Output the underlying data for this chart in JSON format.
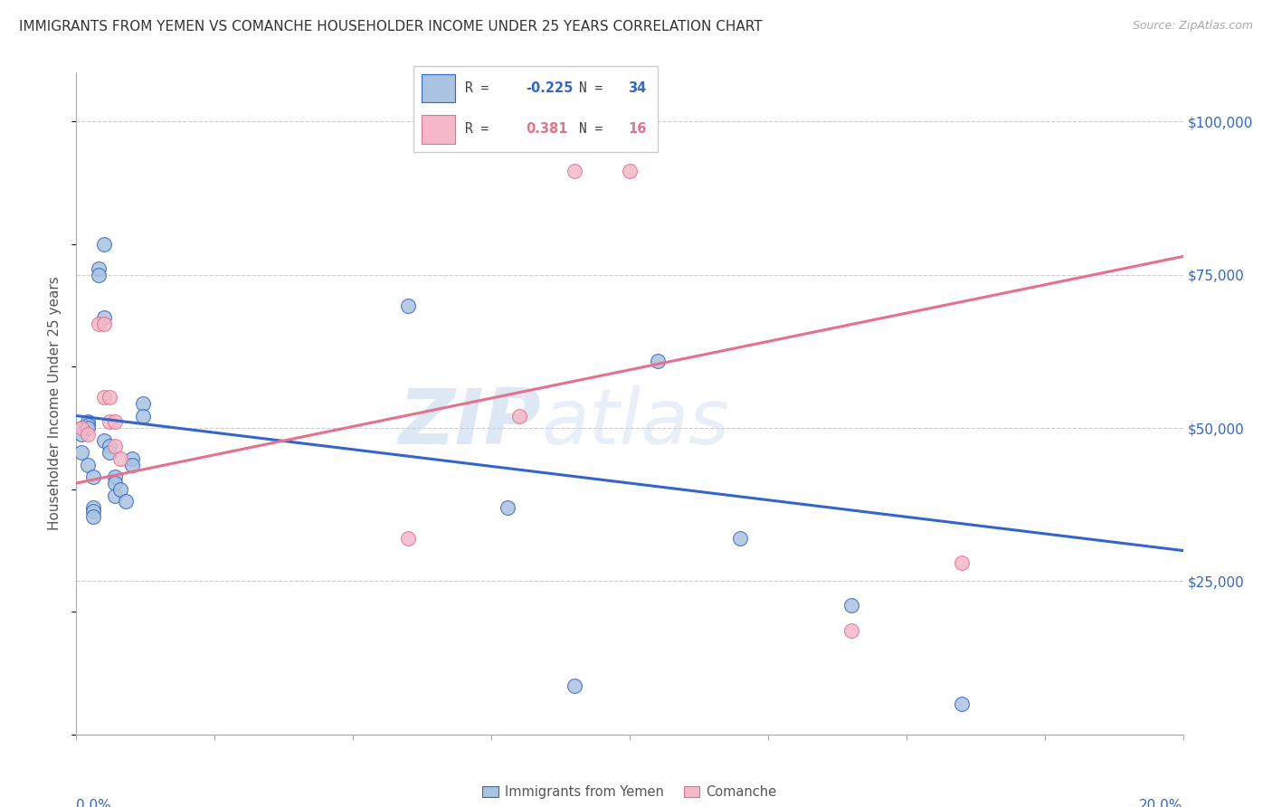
{
  "title": "IMMIGRANTS FROM YEMEN VS COMANCHE HOUSEHOLDER INCOME UNDER 25 YEARS CORRELATION CHART",
  "source": "Source: ZipAtlas.com",
  "ylabel": "Householder Income Under 25 years",
  "y_ticks": [
    0,
    25000,
    50000,
    75000,
    100000
  ],
  "y_tick_labels": [
    "",
    "$25,000",
    "$50,000",
    "$75,000",
    "$100,000"
  ],
  "x_min": 0.0,
  "x_max": 0.2,
  "y_min": 0,
  "y_max": 108000,
  "blue_color": "#a8c4e0",
  "pink_color": "#f4b8c8",
  "blue_line_color": "#3366CC",
  "pink_line_color": "#e8708a",
  "watermark_zip": "ZIP",
  "watermark_atlas": "atlas",
  "blue_points_x": [
    0.001,
    0.001,
    0.001,
    0.002,
    0.002,
    0.002,
    0.002,
    0.003,
    0.003,
    0.003,
    0.003,
    0.004,
    0.004,
    0.005,
    0.005,
    0.005,
    0.006,
    0.006,
    0.007,
    0.007,
    0.007,
    0.008,
    0.009,
    0.01,
    0.01,
    0.012,
    0.012,
    0.06,
    0.078,
    0.09,
    0.105,
    0.12,
    0.14,
    0.16
  ],
  "blue_points_y": [
    50000,
    49000,
    46000,
    51000,
    50500,
    50000,
    44000,
    42000,
    37000,
    36500,
    35500,
    76000,
    75000,
    80000,
    68000,
    48000,
    47000,
    46000,
    42000,
    41000,
    39000,
    40000,
    38000,
    45000,
    44000,
    54000,
    52000,
    70000,
    37000,
    8000,
    61000,
    32000,
    21000,
    5000
  ],
  "pink_points_x": [
    0.001,
    0.002,
    0.004,
    0.005,
    0.005,
    0.006,
    0.006,
    0.007,
    0.007,
    0.008,
    0.06,
    0.08,
    0.09,
    0.1,
    0.14,
    0.16
  ],
  "pink_points_y": [
    50000,
    49000,
    67000,
    67000,
    55000,
    55000,
    51000,
    51000,
    47000,
    45000,
    32000,
    52000,
    92000,
    92000,
    17000,
    28000
  ],
  "blue_line_x": [
    0.0,
    0.2
  ],
  "blue_line_y": [
    52000,
    30000
  ],
  "pink_line_x": [
    0.0,
    0.2
  ],
  "pink_line_y": [
    41000,
    78000
  ],
  "x_ticks": [
    0.0,
    0.025,
    0.05,
    0.075,
    0.1,
    0.125,
    0.15,
    0.175,
    0.2
  ]
}
